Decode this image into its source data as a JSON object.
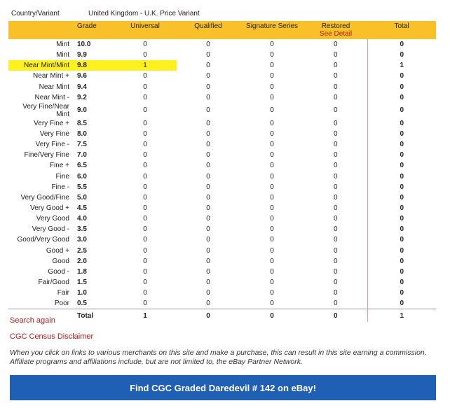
{
  "header": {
    "country_label": "Country/Variant",
    "variant_value": "United Kingdom - U.K. Price Variant"
  },
  "table": {
    "columns": {
      "grade": "Grade",
      "universal": "Universal",
      "qualified": "Qualified",
      "signature": "Signature Series",
      "restored": "Restored",
      "restored_link": "See Detail",
      "total": "Total"
    },
    "rows": [
      {
        "label": "Mint",
        "grade": "10.0",
        "universal": "0",
        "qualified": "0",
        "signature": "0",
        "restored": "0",
        "total": "0"
      },
      {
        "label": "Mint",
        "grade": "9.9",
        "universal": "0",
        "qualified": "0",
        "signature": "0",
        "restored": "0",
        "total": "0"
      },
      {
        "label": "Near Mint/Mint",
        "grade": "9.8",
        "universal": "1",
        "qualified": "0",
        "signature": "0",
        "restored": "0",
        "total": "1"
      },
      {
        "label": "Near Mint +",
        "grade": "9.6",
        "universal": "0",
        "qualified": "0",
        "signature": "0",
        "restored": "0",
        "total": "0"
      },
      {
        "label": "Near Mint",
        "grade": "9.4",
        "universal": "0",
        "qualified": "0",
        "signature": "0",
        "restored": "0",
        "total": "0"
      },
      {
        "label": "Near Mint -",
        "grade": "9.2",
        "universal": "0",
        "qualified": "0",
        "signature": "0",
        "restored": "0",
        "total": "0"
      },
      {
        "label": "Very Fine/Near Mint",
        "grade": "9.0",
        "universal": "0",
        "qualified": "0",
        "signature": "0",
        "restored": "0",
        "total": "0"
      },
      {
        "label": "Very Fine +",
        "grade": "8.5",
        "universal": "0",
        "qualified": "0",
        "signature": "0",
        "restored": "0",
        "total": "0"
      },
      {
        "label": "Very Fine",
        "grade": "8.0",
        "universal": "0",
        "qualified": "0",
        "signature": "0",
        "restored": "0",
        "total": "0"
      },
      {
        "label": "Very Fine -",
        "grade": "7.5",
        "universal": "0",
        "qualified": "0",
        "signature": "0",
        "restored": "0",
        "total": "0"
      },
      {
        "label": "Fine/Very Fine",
        "grade": "7.0",
        "universal": "0",
        "qualified": "0",
        "signature": "0",
        "restored": "0",
        "total": "0"
      },
      {
        "label": "Fine +",
        "grade": "6.5",
        "universal": "0",
        "qualified": "0",
        "signature": "0",
        "restored": "0",
        "total": "0"
      },
      {
        "label": "Fine",
        "grade": "6.0",
        "universal": "0",
        "qualified": "0",
        "signature": "0",
        "restored": "0",
        "total": "0"
      },
      {
        "label": "Fine -",
        "grade": "5.5",
        "universal": "0",
        "qualified": "0",
        "signature": "0",
        "restored": "0",
        "total": "0"
      },
      {
        "label": "Very Good/Fine",
        "grade": "5.0",
        "universal": "0",
        "qualified": "0",
        "signature": "0",
        "restored": "0",
        "total": "0"
      },
      {
        "label": "Very Good +",
        "grade": "4.5",
        "universal": "0",
        "qualified": "0",
        "signature": "0",
        "restored": "0",
        "total": "0"
      },
      {
        "label": "Very Good",
        "grade": "4.0",
        "universal": "0",
        "qualified": "0",
        "signature": "0",
        "restored": "0",
        "total": "0"
      },
      {
        "label": "Very Good -",
        "grade": "3.5",
        "universal": "0",
        "qualified": "0",
        "signature": "0",
        "restored": "0",
        "total": "0"
      },
      {
        "label": "Good/Very Good",
        "grade": "3.0",
        "universal": "0",
        "qualified": "0",
        "signature": "0",
        "restored": "0",
        "total": "0"
      },
      {
        "label": "Good +",
        "grade": "2.5",
        "universal": "0",
        "qualified": "0",
        "signature": "0",
        "restored": "0",
        "total": "0"
      },
      {
        "label": "Good",
        "grade": "2.0",
        "universal": "0",
        "qualified": "0",
        "signature": "0",
        "restored": "0",
        "total": "0"
      },
      {
        "label": "Good -",
        "grade": "1.8",
        "universal": "0",
        "qualified": "0",
        "signature": "0",
        "restored": "0",
        "total": "0"
      },
      {
        "label": "Fair/Good",
        "grade": "1.5",
        "universal": "0",
        "qualified": "0",
        "signature": "0",
        "restored": "0",
        "total": "0"
      },
      {
        "label": "Fair",
        "grade": "1.0",
        "universal": "0",
        "qualified": "0",
        "signature": "0",
        "restored": "0",
        "total": "0"
      },
      {
        "label": "Poor",
        "grade": "0.5",
        "universal": "0",
        "qualified": "0",
        "signature": "0",
        "restored": "0",
        "total": "0"
      }
    ],
    "footer": {
      "label": "Total",
      "universal": "1",
      "qualified": "0",
      "signature": "0",
      "restored": "0",
      "total": "1"
    },
    "highlight_color": "#fff01f",
    "header_color": "#f8c12a"
  },
  "links": {
    "search_again": "Search again",
    "disclaimer": "CGC Census Disclaimer"
  },
  "affiliate_text": "When you click on links to various merchants on this site and make a purchase, this can result in this site earning a commission. Affiliate programs and affiliations include, but are not limited to, the eBay Partner Network.",
  "ebay_button": {
    "label": "Find CGC Graded Daredevil # 142 on eBay!",
    "color": "#1f5fb4"
  }
}
